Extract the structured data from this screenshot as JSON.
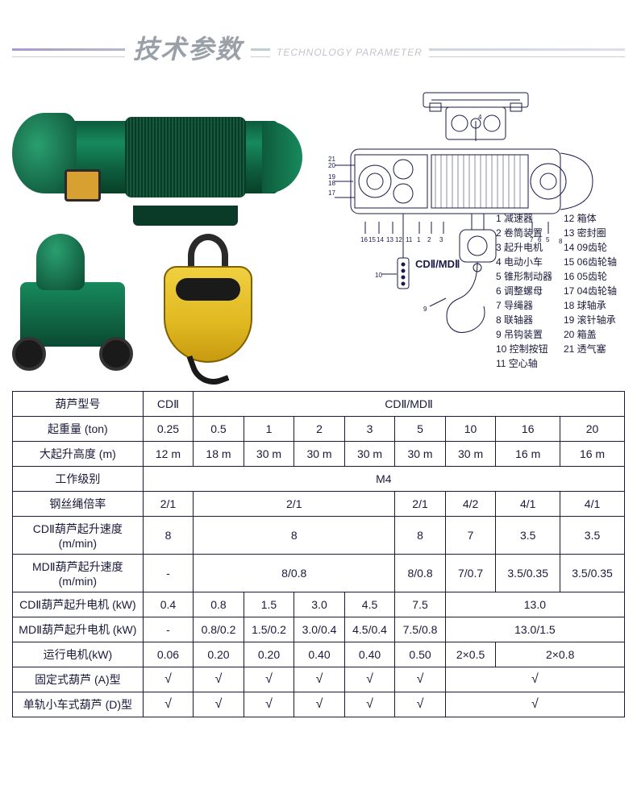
{
  "header": {
    "title": "技术参数",
    "subtitle": "TECHNOLOGY PARAMETER"
  },
  "diagram": {
    "title": "CDⅡ/MDⅡ",
    "legend": [
      {
        "n": "1",
        "t": "减速器"
      },
      {
        "n": "2",
        "t": "卷筒装置"
      },
      {
        "n": "3",
        "t": "起升电机"
      },
      {
        "n": "4",
        "t": "电动小车"
      },
      {
        "n": "5",
        "t": "锥形制动器"
      },
      {
        "n": "6",
        "t": "调整螺母"
      },
      {
        "n": "7",
        "t": "导绳器"
      },
      {
        "n": "8",
        "t": "联轴器"
      },
      {
        "n": "9",
        "t": "吊钩装置"
      },
      {
        "n": "10",
        "t": "控制按钮"
      },
      {
        "n": "11",
        "t": "空心轴"
      },
      {
        "n": "12",
        "t": "箱体"
      },
      {
        "n": "13",
        "t": "密封圈"
      },
      {
        "n": "14",
        "t": "09齿轮"
      },
      {
        "n": "15",
        "t": "06齿轮轴"
      },
      {
        "n": "16",
        "t": "05齿轮"
      },
      {
        "n": "17",
        "t": "04齿轮轴"
      },
      {
        "n": "18",
        "t": "球轴承"
      },
      {
        "n": "19",
        "t": "滚针轴承"
      },
      {
        "n": "20",
        "t": "箱盖"
      },
      {
        "n": "21",
        "t": "透气塞"
      }
    ]
  },
  "table": {
    "rows": [
      {
        "label": "葫芦型号",
        "cells": [
          {
            "v": "CDⅡ",
            "span": 1
          },
          {
            "v": "CDⅡ/MDⅡ",
            "span": 8
          }
        ]
      },
      {
        "label": "起重量 (ton)",
        "cells": [
          {
            "v": "0.25"
          },
          {
            "v": "0.5"
          },
          {
            "v": "1"
          },
          {
            "v": "2"
          },
          {
            "v": "3"
          },
          {
            "v": "5"
          },
          {
            "v": "10"
          },
          {
            "v": "16"
          },
          {
            "v": "20"
          }
        ]
      },
      {
        "label": "大起升高度 (m)",
        "cells": [
          {
            "v": "12 m"
          },
          {
            "v": "18 m"
          },
          {
            "v": "30 m"
          },
          {
            "v": "30 m"
          },
          {
            "v": "30 m"
          },
          {
            "v": "30 m"
          },
          {
            "v": "30 m"
          },
          {
            "v": "16 m"
          },
          {
            "v": "16 m"
          }
        ]
      },
      {
        "label": "工作级别",
        "cells": [
          {
            "v": "M4",
            "span": 9
          }
        ]
      },
      {
        "label": "钢丝绳倍率",
        "cells": [
          {
            "v": "2/1"
          },
          {
            "v": "2/1",
            "span": 4
          },
          {
            "v": "2/1"
          },
          {
            "v": "4/2"
          },
          {
            "v": "4/1"
          },
          {
            "v": "4/1"
          }
        ]
      },
      {
        "label": "CDⅡ葫芦起升速度 (m/min)",
        "cells": [
          {
            "v": "8"
          },
          {
            "v": "8",
            "span": 4
          },
          {
            "v": "8"
          },
          {
            "v": "7"
          },
          {
            "v": "3.5"
          },
          {
            "v": "3.5"
          }
        ]
      },
      {
        "label": "MDⅡ葫芦起升速度 (m/min)",
        "cells": [
          {
            "v": "-"
          },
          {
            "v": "8/0.8",
            "span": 4
          },
          {
            "v": "8/0.8"
          },
          {
            "v": "7/0.7"
          },
          {
            "v": "3.5/0.35"
          },
          {
            "v": "3.5/0.35"
          }
        ]
      },
      {
        "label": "CDⅡ葫芦起升电机 (kW)",
        "cells": [
          {
            "v": "0.4"
          },
          {
            "v": "0.8"
          },
          {
            "v": "1.5"
          },
          {
            "v": "3.0"
          },
          {
            "v": "4.5"
          },
          {
            "v": "7.5"
          },
          {
            "v": "13.0",
            "span": 3
          }
        ]
      },
      {
        "label": "MDⅡ葫芦起升电机 (kW)",
        "cells": [
          {
            "v": "-"
          },
          {
            "v": "0.8/0.2"
          },
          {
            "v": "1.5/0.2"
          },
          {
            "v": "3.0/0.4"
          },
          {
            "v": "4.5/0.4"
          },
          {
            "v": "7.5/0.8"
          },
          {
            "v": "13.0/1.5",
            "span": 3
          }
        ]
      },
      {
        "label": "运行电机(kW)",
        "cells": [
          {
            "v": "0.06"
          },
          {
            "v": "0.20"
          },
          {
            "v": "0.20"
          },
          {
            "v": "0.40"
          },
          {
            "v": "0.40"
          },
          {
            "v": "0.50"
          },
          {
            "v": "2×0.5"
          },
          {
            "v": "2×0.8",
            "span": 2
          }
        ]
      },
      {
        "label": "固定式葫芦 (A)型",
        "cells": [
          {
            "v": "√"
          },
          {
            "v": "√"
          },
          {
            "v": "√"
          },
          {
            "v": "√"
          },
          {
            "v": "√"
          },
          {
            "v": "√"
          },
          {
            "v": "√",
            "span": 3
          }
        ]
      },
      {
        "label": "单轨小车式葫芦 (D)型",
        "cells": [
          {
            "v": "√"
          },
          {
            "v": "√"
          },
          {
            "v": "√"
          },
          {
            "v": "√"
          },
          {
            "v": "√"
          },
          {
            "v": "√"
          },
          {
            "v": "√",
            "span": 3
          }
        ]
      }
    ],
    "col_widths": [
      "150px",
      "58px",
      "58px",
      "58px",
      "58px",
      "58px",
      "58px",
      "58px",
      "74px",
      "74px"
    ],
    "border_color": "#1a1a3a",
    "font_size": 14
  }
}
